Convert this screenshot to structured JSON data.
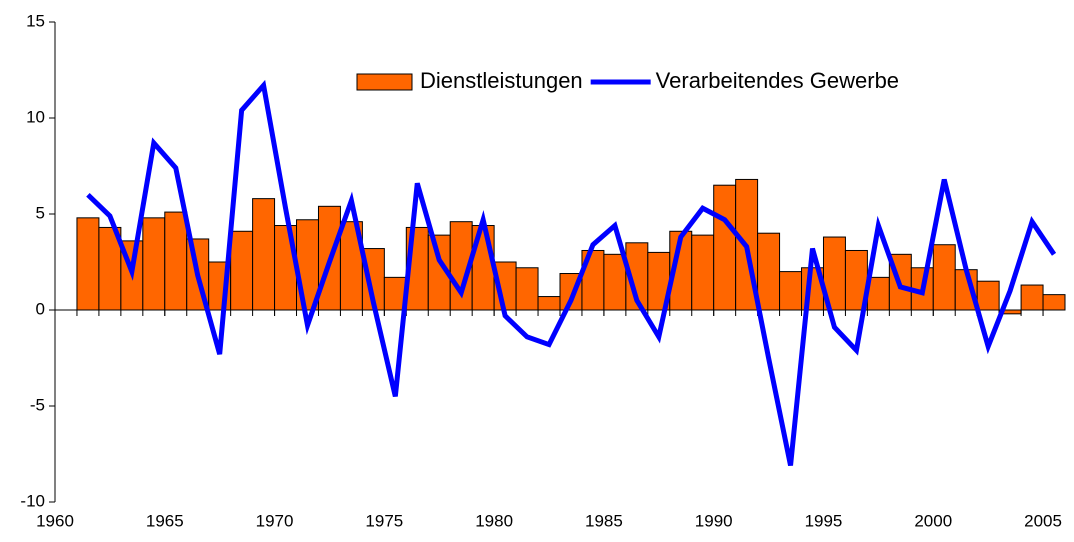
{
  "chart_data": {
    "type": "bar",
    "x": [
      1961,
      1962,
      1963,
      1964,
      1965,
      1966,
      1967,
      1968,
      1969,
      1970,
      1971,
      1972,
      1973,
      1974,
      1975,
      1976,
      1977,
      1978,
      1979,
      1980,
      1981,
      1982,
      1983,
      1984,
      1985,
      1986,
      1987,
      1988,
      1989,
      1990,
      1991,
      1992,
      1993,
      1994,
      1995,
      1996,
      1997,
      1998,
      1999,
      2000,
      2001,
      2002,
      2003,
      2004,
      2005
    ],
    "series": [
      {
        "name": "Dienstleistungen",
        "type": "bar",
        "color": "#ff6600",
        "values": [
          4.8,
          4.3,
          3.6,
          4.8,
          5.1,
          3.7,
          2.5,
          4.1,
          5.8,
          4.4,
          4.7,
          5.4,
          4.6,
          3.2,
          1.7,
          4.3,
          3.9,
          4.6,
          4.4,
          2.5,
          2.2,
          0.7,
          1.9,
          3.1,
          2.9,
          3.5,
          3.0,
          4.1,
          3.9,
          6.5,
          6.8,
          4.0,
          2.0,
          2.2,
          3.8,
          3.1,
          1.7,
          2.9,
          2.2,
          3.4,
          2.1,
          1.5,
          -0.2,
          1.3,
          0.8
        ]
      },
      {
        "name": "Verarbeitendes Gewerbe",
        "type": "line",
        "color": "#0000ff",
        "values": [
          6.0,
          4.9,
          2.0,
          8.7,
          7.4,
          1.8,
          -2.3,
          10.4,
          11.7,
          5.3,
          -0.8,
          2.5,
          5.7,
          0.4,
          -4.5,
          6.6,
          2.6,
          0.9,
          4.7,
          -0.3,
          -1.4,
          -1.8,
          0.5,
          3.4,
          4.4,
          0.5,
          -1.4,
          3.8,
          5.3,
          4.7,
          3.3,
          -2.5,
          -8.1,
          3.2,
          -0.9,
          -2.1,
          4.4,
          1.2,
          0.9,
          6.8,
          2.1,
          -1.9,
          1.0,
          4.6,
          2.9
        ]
      }
    ],
    "xlim": [
      1960,
      2006
    ],
    "xticks": [
      1960,
      1965,
      1970,
      1975,
      1980,
      1985,
      1990,
      1995,
      2000,
      2005
    ],
    "ylim": [
      -10,
      15
    ],
    "yticks": [
      -10,
      -5,
      0,
      5,
      10,
      15
    ]
  }
}
